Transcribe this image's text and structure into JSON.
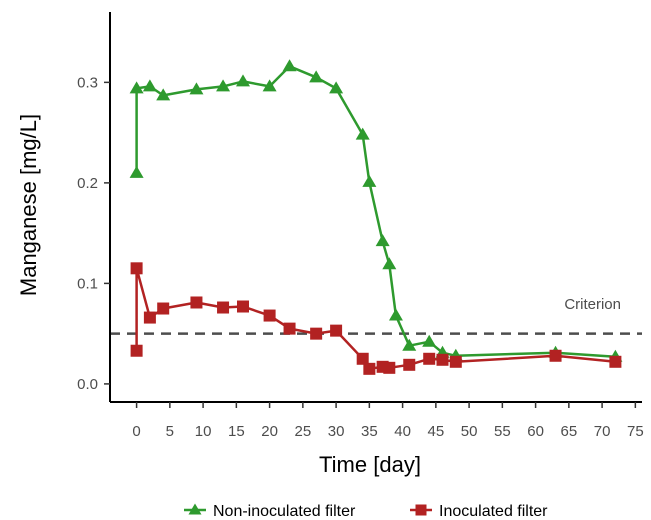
{
  "chart_data": {
    "type": "line",
    "xlabel": "Time [day]",
    "ylabel": "Manganese [mg/L]",
    "xlim": [
      -4,
      76
    ],
    "ylim": [
      -0.018,
      0.37
    ],
    "xticks": [
      0,
      5,
      10,
      15,
      20,
      25,
      30,
      35,
      40,
      45,
      50,
      55,
      60,
      65,
      70,
      75
    ],
    "yticks": [
      0.0,
      0.1,
      0.2,
      0.3
    ],
    "ytick_labels": [
      "0.0",
      "0.1",
      "0.2",
      "0.3"
    ],
    "grid": false,
    "legend_position": "bottom",
    "series": [
      {
        "name": "Non-inoculated filter",
        "color": "#2e9a2e",
        "marker": "triangle",
        "x": [
          0,
          0,
          2,
          4,
          9,
          13,
          16,
          20,
          23,
          27,
          30,
          34,
          35,
          37,
          38,
          39,
          41,
          44,
          46,
          48,
          63,
          72
        ],
        "y": [
          0.21,
          0.294,
          0.296,
          0.287,
          0.293,
          0.296,
          0.301,
          0.296,
          0.316,
          0.305,
          0.294,
          0.248,
          0.201,
          0.142,
          0.119,
          0.068,
          0.038,
          0.042,
          0.031,
          0.028,
          0.031,
          0.027
        ]
      },
      {
        "name": "Inoculated filter",
        "color": "#b22222",
        "marker": "square",
        "x": [
          0,
          0,
          2,
          4,
          9,
          13,
          16,
          20,
          23,
          27,
          30,
          34,
          35,
          37,
          38,
          41,
          44,
          46,
          48,
          63,
          72
        ],
        "y": [
          0.033,
          0.115,
          0.066,
          0.075,
          0.081,
          0.076,
          0.077,
          0.068,
          0.055,
          0.05,
          0.053,
          0.025,
          0.015,
          0.017,
          0.016,
          0.019,
          0.025,
          0.024,
          0.022,
          0.028,
          0.022
        ]
      }
    ],
    "reference_line": {
      "y": 0.05,
      "label": "Criterion",
      "style": "dashed",
      "color": "#4d4d4d"
    }
  }
}
